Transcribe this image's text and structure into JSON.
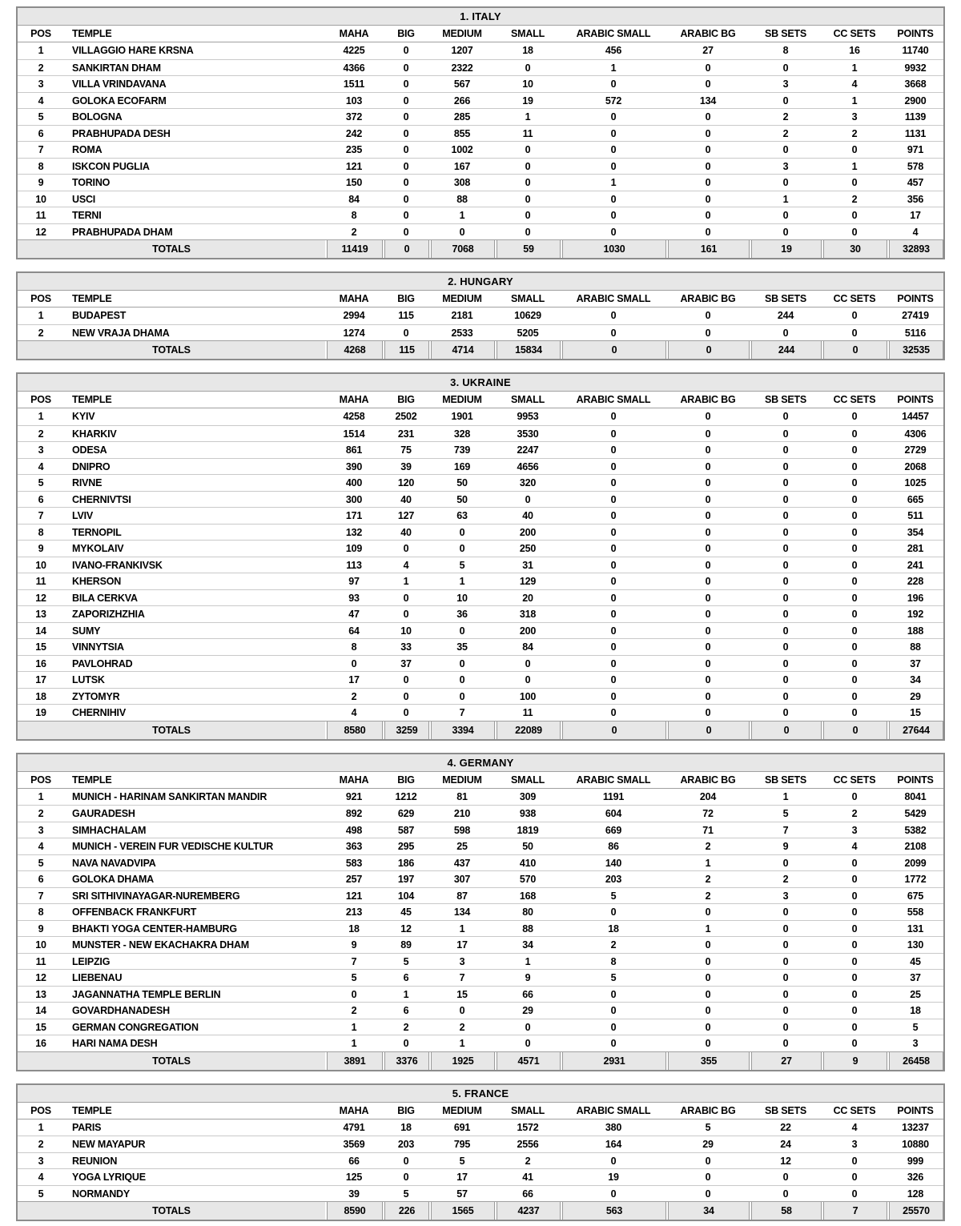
{
  "columns": [
    "POS",
    "TEMPLE",
    "MAHA",
    "BIG",
    "MEDIUM",
    "SMALL",
    "ARABIC SMALL",
    "ARABIC BG",
    "SB SETS",
    "CC SETS",
    "POINTS"
  ],
  "totals_label": "TOTALS",
  "colors": {
    "band_gray": "#e7e7e7",
    "outer_border": "#8c8c8c",
    "row_separator": "#c9c9c9",
    "text": "#000000"
  },
  "tables": [
    {
      "title": "1. ITALY",
      "rows": [
        [
          "1",
          "VILLAGGIO HARE KRSNA",
          "4225",
          "0",
          "1207",
          "18",
          "456",
          "27",
          "8",
          "16",
          "11740"
        ],
        [
          "2",
          "SANKIRTAN DHAM",
          "4366",
          "0",
          "2322",
          "0",
          "1",
          "0",
          "0",
          "1",
          "9932"
        ],
        [
          "3",
          "VILLA VRINDAVANA",
          "1511",
          "0",
          "567",
          "10",
          "0",
          "0",
          "3",
          "4",
          "3668"
        ],
        [
          "4",
          "GOLOKA ECOFARM",
          "103",
          "0",
          "266",
          "19",
          "572",
          "134",
          "0",
          "1",
          "2900"
        ],
        [
          "5",
          "BOLOGNA",
          "372",
          "0",
          "285",
          "1",
          "0",
          "0",
          "2",
          "3",
          "1139"
        ],
        [
          "6",
          "PRABHUPADA DESH",
          "242",
          "0",
          "855",
          "11",
          "0",
          "0",
          "2",
          "2",
          "1131"
        ],
        [
          "7",
          "ROMA",
          "235",
          "0",
          "1002",
          "0",
          "0",
          "0",
          "0",
          "0",
          "971"
        ],
        [
          "8",
          "ISKCON PUGLIA",
          "121",
          "0",
          "167",
          "0",
          "0",
          "0",
          "3",
          "1",
          "578"
        ],
        [
          "9",
          "TORINO",
          "150",
          "0",
          "308",
          "0",
          "1",
          "0",
          "0",
          "0",
          "457"
        ],
        [
          "10",
          "USCI",
          "84",
          "0",
          "88",
          "0",
          "0",
          "0",
          "1",
          "2",
          "356"
        ],
        [
          "11",
          "TERNI",
          "8",
          "0",
          "1",
          "0",
          "0",
          "0",
          "0",
          "0",
          "17"
        ],
        [
          "12",
          "PRABHUPADA DHAM",
          "2",
          "0",
          "0",
          "0",
          "0",
          "0",
          "0",
          "0",
          "4"
        ]
      ],
      "totals": [
        "11419",
        "0",
        "7068",
        "59",
        "1030",
        "161",
        "19",
        "30",
        "32893"
      ]
    },
    {
      "title": "2. HUNGARY",
      "rows": [
        [
          "1",
          "BUDAPEST",
          "2994",
          "115",
          "2181",
          "10629",
          "0",
          "0",
          "244",
          "0",
          "27419"
        ],
        [
          "2",
          "NEW VRAJA DHAMA",
          "1274",
          "0",
          "2533",
          "5205",
          "0",
          "0",
          "0",
          "0",
          "5116"
        ]
      ],
      "totals": [
        "4268",
        "115",
        "4714",
        "15834",
        "0",
        "0",
        "244",
        "0",
        "32535"
      ]
    },
    {
      "title": "3. UKRAINE",
      "rows": [
        [
          "1",
          "KYIV",
          "4258",
          "2502",
          "1901",
          "9953",
          "0",
          "0",
          "0",
          "0",
          "14457"
        ],
        [
          "2",
          "KHARKIV",
          "1514",
          "231",
          "328",
          "3530",
          "0",
          "0",
          "0",
          "0",
          "4306"
        ],
        [
          "3",
          "ODESA",
          "861",
          "75",
          "739",
          "2247",
          "0",
          "0",
          "0",
          "0",
          "2729"
        ],
        [
          "4",
          "DNIPRO",
          "390",
          "39",
          "169",
          "4656",
          "0",
          "0",
          "0",
          "0",
          "2068"
        ],
        [
          "5",
          "RIVNE",
          "400",
          "120",
          "50",
          "320",
          "0",
          "0",
          "0",
          "0",
          "1025"
        ],
        [
          "6",
          "CHERNIVTSI",
          "300",
          "40",
          "50",
          "0",
          "0",
          "0",
          "0",
          "0",
          "665"
        ],
        [
          "7",
          "LVIV",
          "171",
          "127",
          "63",
          "40",
          "0",
          "0",
          "0",
          "0",
          "511"
        ],
        [
          "8",
          "TERNOPIL",
          "132",
          "40",
          "0",
          "200",
          "0",
          "0",
          "0",
          "0",
          "354"
        ],
        [
          "9",
          "MYKOLAIV",
          "109",
          "0",
          "0",
          "250",
          "0",
          "0",
          "0",
          "0",
          "281"
        ],
        [
          "10",
          "IVANO-FRANKIVSK",
          "113",
          "4",
          "5",
          "31",
          "0",
          "0",
          "0",
          "0",
          "241"
        ],
        [
          "11",
          "KHERSON",
          "97",
          "1",
          "1",
          "129",
          "0",
          "0",
          "0",
          "0",
          "228"
        ],
        [
          "12",
          "BILA CERKVA",
          "93",
          "0",
          "10",
          "20",
          "0",
          "0",
          "0",
          "0",
          "196"
        ],
        [
          "13",
          "ZAPORIZHZHIA",
          "47",
          "0",
          "36",
          "318",
          "0",
          "0",
          "0",
          "0",
          "192"
        ],
        [
          "14",
          "SUMY",
          "64",
          "10",
          "0",
          "200",
          "0",
          "0",
          "0",
          "0",
          "188"
        ],
        [
          "15",
          "VINNYTSIA",
          "8",
          "33",
          "35",
          "84",
          "0",
          "0",
          "0",
          "0",
          "88"
        ],
        [
          "16",
          "PAVLOHRAD",
          "0",
          "37",
          "0",
          "0",
          "0",
          "0",
          "0",
          "0",
          "37"
        ],
        [
          "17",
          "LUTSK",
          "17",
          "0",
          "0",
          "0",
          "0",
          "0",
          "0",
          "0",
          "34"
        ],
        [
          "18",
          "ZYTOMYR",
          "2",
          "0",
          "0",
          "100",
          "0",
          "0",
          "0",
          "0",
          "29"
        ],
        [
          "19",
          "CHERNIHIV",
          "4",
          "0",
          "7",
          "11",
          "0",
          "0",
          "0",
          "0",
          "15"
        ]
      ],
      "totals": [
        "8580",
        "3259",
        "3394",
        "22089",
        "0",
        "0",
        "0",
        "0",
        "27644"
      ]
    },
    {
      "title": "4. GERMANY",
      "rows": [
        [
          "1",
          "MUNICH - HARINAM SANKIRTAN MANDIR",
          "921",
          "1212",
          "81",
          "309",
          "1191",
          "204",
          "1",
          "0",
          "8041"
        ],
        [
          "2",
          "GAURADESH",
          "892",
          "629",
          "210",
          "938",
          "604",
          "72",
          "5",
          "2",
          "5429"
        ],
        [
          "3",
          "SIMHACHALAM",
          "498",
          "587",
          "598",
          "1819",
          "669",
          "71",
          "7",
          "3",
          "5382"
        ],
        [
          "4",
          "MUNICH - VEREIN FUR VEDISCHE KULTUR",
          "363",
          "295",
          "25",
          "50",
          "86",
          "2",
          "9",
          "4",
          "2108"
        ],
        [
          "5",
          "NAVA NAVADVIPA",
          "583",
          "186",
          "437",
          "410",
          "140",
          "1",
          "0",
          "0",
          "2099"
        ],
        [
          "6",
          "GOLOKA DHAMA",
          "257",
          "197",
          "307",
          "570",
          "203",
          "2",
          "2",
          "0",
          "1772"
        ],
        [
          "7",
          "SRI SITHIVINAYAGAR-NUREMBERG",
          "121",
          "104",
          "87",
          "168",
          "5",
          "2",
          "3",
          "0",
          "675"
        ],
        [
          "8",
          "OFFENBACK FRANKFURT",
          "213",
          "45",
          "134",
          "80",
          "0",
          "0",
          "0",
          "0",
          "558"
        ],
        [
          "9",
          "BHAKTI YOGA CENTER-HAMBURG",
          "18",
          "12",
          "1",
          "88",
          "18",
          "1",
          "0",
          "0",
          "131"
        ],
        [
          "10",
          "MUNSTER - NEW EKACHAKRA DHAM",
          "9",
          "89",
          "17",
          "34",
          "2",
          "0",
          "0",
          "0",
          "130"
        ],
        [
          "11",
          "LEIPZIG",
          "7",
          "5",
          "3",
          "1",
          "8",
          "0",
          "0",
          "0",
          "45"
        ],
        [
          "12",
          "LIEBENAU",
          "5",
          "6",
          "7",
          "9",
          "5",
          "0",
          "0",
          "0",
          "37"
        ],
        [
          "13",
          "JAGANNATHA TEMPLE BERLIN",
          "0",
          "1",
          "15",
          "66",
          "0",
          "0",
          "0",
          "0",
          "25"
        ],
        [
          "14",
          "GOVARDHANADESH",
          "2",
          "6",
          "0",
          "29",
          "0",
          "0",
          "0",
          "0",
          "18"
        ],
        [
          "15",
          "GERMAN CONGREGATION",
          "1",
          "2",
          "2",
          "0",
          "0",
          "0",
          "0",
          "0",
          "5"
        ],
        [
          "16",
          "HARI NAMA DESH",
          "1",
          "0",
          "1",
          "0",
          "0",
          "0",
          "0",
          "0",
          "3"
        ]
      ],
      "totals": [
        "3891",
        "3376",
        "1925",
        "4571",
        "2931",
        "355",
        "27",
        "9",
        "26458"
      ]
    },
    {
      "title": "5. FRANCE",
      "rows": [
        [
          "1",
          "PARIS",
          "4791",
          "18",
          "691",
          "1572",
          "380",
          "5",
          "22",
          "4",
          "13237"
        ],
        [
          "2",
          "NEW MAYAPUR",
          "3569",
          "203",
          "795",
          "2556",
          "164",
          "29",
          "24",
          "3",
          "10880"
        ],
        [
          "3",
          "REUNION",
          "66",
          "0",
          "5",
          "2",
          "0",
          "0",
          "12",
          "0",
          "999"
        ],
        [
          "4",
          "YOGA LYRIQUE",
          "125",
          "0",
          "17",
          "41",
          "19",
          "0",
          "0",
          "0",
          "326"
        ],
        [
          "5",
          "NORMANDY",
          "39",
          "5",
          "57",
          "66",
          "0",
          "0",
          "0",
          "0",
          "128"
        ]
      ],
      "totals": [
        "8590",
        "226",
        "1565",
        "4237",
        "563",
        "34",
        "58",
        "7",
        "25570"
      ]
    }
  ]
}
